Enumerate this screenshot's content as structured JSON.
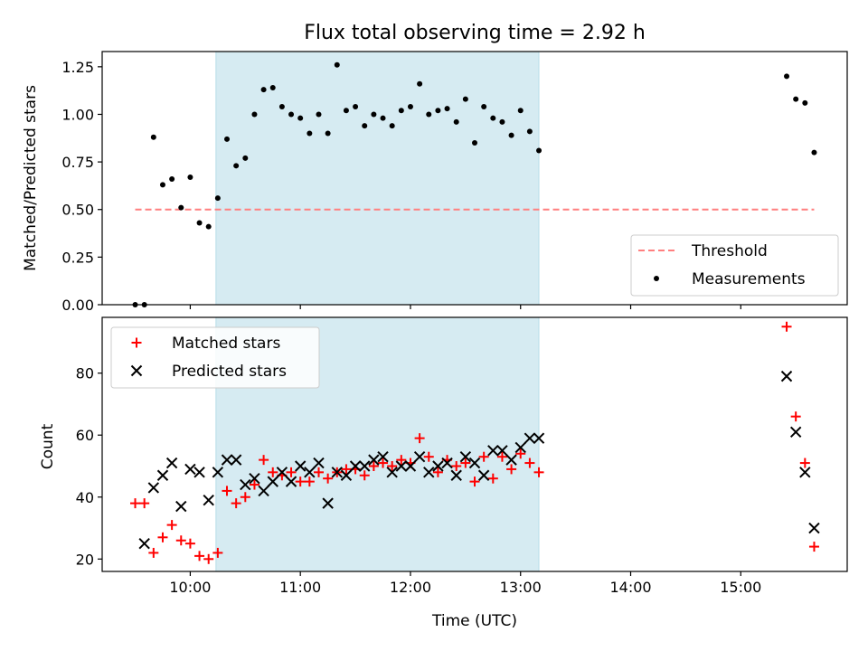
{
  "chart_data": [
    {
      "type": "scatter",
      "title": "Flux total observing time = 2.92 h",
      "ylabel": "Matched/Predicted stars",
      "xlabel": "",
      "xlim": [
        "09:12",
        "15:58"
      ],
      "ylim": [
        0,
        1.33
      ],
      "x_ticks": [
        "10:00",
        "11:00",
        "12:00",
        "13:00",
        "14:00",
        "15:00"
      ],
      "y_ticks": [
        "0.00",
        "0.25",
        "0.50",
        "0.75",
        "1.00",
        "1.25"
      ],
      "grid": false,
      "legend_position": "lower-right",
      "shaded_span": {
        "start": "10:14",
        "end": "13:10",
        "color": "#add8e6"
      },
      "series": [
        {
          "name": "Threshold",
          "style": "dashed-line",
          "color": "#ff7f7f",
          "x": [
            "09:30",
            "15:40"
          ],
          "y": [
            0.5,
            0.5
          ]
        },
        {
          "name": "Measurements",
          "style": "dot",
          "color": "#000000",
          "x": [
            "09:30",
            "09:35",
            "09:40",
            "09:45",
            "09:50",
            "09:55",
            "10:00",
            "10:05",
            "10:10",
            "10:15",
            "10:20",
            "10:25",
            "10:30",
            "10:35",
            "10:40",
            "10:45",
            "10:50",
            "10:55",
            "11:00",
            "11:05",
            "11:10",
            "11:15",
            "11:20",
            "11:25",
            "11:30",
            "11:35",
            "11:40",
            "11:45",
            "11:50",
            "11:55",
            "12:00",
            "12:05",
            "12:10",
            "12:15",
            "12:20",
            "12:25",
            "12:30",
            "12:35",
            "12:40",
            "12:45",
            "12:50",
            "12:55",
            "13:00",
            "13:05",
            "13:10",
            "15:25",
            "15:30",
            "15:35",
            "15:40"
          ],
          "y": [
            0.0,
            0.0,
            0.88,
            0.63,
            0.66,
            0.51,
            0.67,
            0.43,
            0.41,
            0.56,
            0.87,
            0.73,
            0.77,
            1.0,
            1.13,
            1.14,
            1.04,
            1.0,
            0.98,
            0.9,
            1.0,
            0.9,
            1.26,
            1.02,
            1.04,
            0.94,
            1.0,
            0.98,
            0.94,
            1.02,
            1.04,
            1.16,
            1.0,
            1.02,
            1.03,
            0.96,
            1.08,
            0.85,
            1.04,
            0.98,
            0.96,
            0.89,
            1.02,
            0.91,
            0.81,
            1.2,
            1.08,
            1.06,
            0.8
          ]
        }
      ]
    },
    {
      "type": "scatter",
      "title": "",
      "xlabel": "Time (UTC)",
      "ylabel": "Count",
      "xlim": [
        "09:12",
        "15:58"
      ],
      "ylim": [
        16,
        98
      ],
      "x_ticks": [
        "10:00",
        "11:00",
        "12:00",
        "13:00",
        "14:00",
        "15:00"
      ],
      "y_ticks": [
        "20",
        "40",
        "60",
        "80"
      ],
      "grid": false,
      "legend_position": "top-left",
      "shaded_span": {
        "start": "10:14",
        "end": "13:10",
        "color": "#add8e6"
      },
      "series": [
        {
          "name": "Matched stars",
          "marker": "plus",
          "color": "#ff0000",
          "x": [
            "09:30",
            "09:35",
            "09:40",
            "09:45",
            "09:50",
            "09:55",
            "10:00",
            "10:05",
            "10:10",
            "10:15",
            "10:20",
            "10:25",
            "10:30",
            "10:35",
            "10:40",
            "10:45",
            "10:50",
            "10:55",
            "11:00",
            "11:05",
            "11:10",
            "11:15",
            "11:20",
            "11:25",
            "11:30",
            "11:35",
            "11:40",
            "11:45",
            "11:50",
            "11:55",
            "12:00",
            "12:05",
            "12:10",
            "12:15",
            "12:20",
            "12:25",
            "12:30",
            "12:35",
            "12:40",
            "12:45",
            "12:50",
            "12:55",
            "13:00",
            "13:05",
            "13:10",
            "15:25",
            "15:30",
            "15:35",
            "15:40"
          ],
          "y": [
            38,
            38,
            22,
            27,
            31,
            26,
            25,
            21,
            20,
            22,
            42,
            38,
            40,
            44,
            52,
            48,
            47,
            48,
            45,
            45,
            48,
            46,
            48,
            49,
            49,
            47,
            50,
            51,
            50,
            52,
            51,
            59,
            53,
            48,
            52,
            50,
            51,
            45,
            53,
            46,
            53,
            49,
            54,
            51,
            48,
            95,
            66,
            51,
            24
          ]
        },
        {
          "name": "Predicted stars",
          "marker": "x",
          "color": "#000000",
          "x": [
            "09:35",
            "09:40",
            "09:45",
            "09:50",
            "09:55",
            "10:00",
            "10:05",
            "10:10",
            "10:15",
            "10:20",
            "10:25",
            "10:30",
            "10:35",
            "10:40",
            "10:45",
            "10:50",
            "10:55",
            "11:00",
            "11:05",
            "11:10",
            "11:15",
            "11:20",
            "11:25",
            "11:30",
            "11:35",
            "11:40",
            "11:45",
            "11:50",
            "11:55",
            "12:00",
            "12:05",
            "12:10",
            "12:15",
            "12:20",
            "12:25",
            "12:30",
            "12:35",
            "12:40",
            "12:45",
            "12:50",
            "12:55",
            "13:00",
            "13:05",
            "13:10",
            "15:25",
            "15:30",
            "15:35",
            "15:40"
          ],
          "y": [
            25,
            43,
            47,
            51,
            37,
            49,
            48,
            39,
            48,
            52,
            52,
            44,
            46,
            42,
            45,
            48,
            45,
            50,
            48,
            51,
            38,
            48,
            47,
            50,
            50,
            52,
            53,
            48,
            50,
            50,
            53,
            48,
            50,
            51,
            47,
            53,
            51,
            47,
            55,
            55,
            52,
            56,
            59,
            59,
            79,
            61,
            48,
            30
          ]
        }
      ]
    }
  ]
}
